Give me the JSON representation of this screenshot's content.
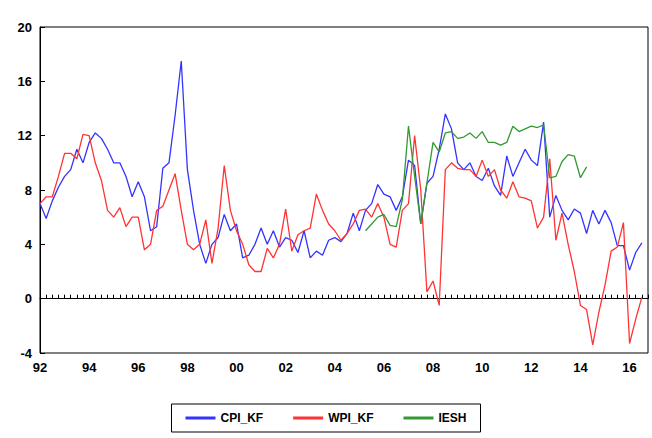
{
  "chart_data": {
    "type": "line",
    "categories": [
      "92",
      null,
      null,
      null,
      null,
      null,
      null,
      null,
      "94",
      null,
      null,
      null,
      null,
      null,
      null,
      null,
      "96",
      null,
      null,
      null,
      null,
      null,
      null,
      null,
      "98",
      null,
      null,
      null,
      null,
      null,
      null,
      null,
      "00",
      null,
      null,
      null,
      null,
      null,
      null,
      null,
      "02",
      null,
      null,
      null,
      null,
      null,
      null,
      null,
      "04",
      null,
      null,
      null,
      null,
      null,
      null,
      null,
      "06",
      null,
      null,
      null,
      null,
      null,
      null,
      null,
      "08",
      null,
      null,
      null,
      null,
      null,
      null,
      null,
      "10",
      null,
      null,
      null,
      null,
      null,
      null,
      null,
      "12",
      null,
      null,
      null,
      null,
      null,
      null,
      null,
      "14",
      null,
      null,
      null,
      null,
      null,
      null,
      null,
      "16",
      null,
      null,
      null
    ],
    "series": [
      {
        "name": "CPI_KF",
        "color": "#3333ff",
        "values": [
          7.0,
          5.9,
          7.2,
          8.2,
          9.0,
          9.5,
          11.0,
          10.0,
          11.5,
          12.2,
          11.8,
          11.0,
          10.0,
          10.0,
          9.0,
          7.5,
          8.6,
          7.5,
          5.0,
          5.3,
          9.6,
          10.0,
          13.5,
          17.5,
          9.5,
          6.5,
          4.0,
          2.6,
          4.0,
          4.5,
          6.2,
          5.0,
          5.5,
          3.0,
          3.2,
          4.0,
          5.2,
          4.0,
          5.0,
          3.8,
          4.5,
          4.3,
          3.4,
          5.0,
          3.0,
          3.5,
          3.2,
          4.3,
          4.5,
          4.2,
          4.8,
          6.3,
          5.0,
          6.5,
          7.0,
          8.4,
          7.7,
          7.5,
          6.5,
          7.5,
          10.2,
          9.8,
          5.5,
          8.5,
          9.0,
          11.0,
          13.6,
          12.5,
          10.0,
          9.5,
          10.0,
          9.0,
          8.7,
          9.6,
          8.3,
          7.6,
          10.5,
          9.0,
          10.0,
          11.0,
          10.2,
          9.8,
          13.0,
          6.0,
          7.6,
          6.5,
          5.8,
          6.6,
          6.3,
          4.8,
          6.5,
          5.5,
          6.5,
          5.6,
          3.9,
          3.9,
          2.1,
          3.4,
          4.1,
          null
        ]
      },
      {
        "name": "WPI_KF",
        "color": "#ff3333",
        "values": [
          7.0,
          7.5,
          7.5,
          9.0,
          10.7,
          10.7,
          10.3,
          12.1,
          12.0,
          10.0,
          8.7,
          6.5,
          6.0,
          6.7,
          5.3,
          6.0,
          6.0,
          3.6,
          4.0,
          6.5,
          6.8,
          8.0,
          9.2,
          6.5,
          4.0,
          3.6,
          4.0,
          5.8,
          2.6,
          5.2,
          9.8,
          6.5,
          5.0,
          4.0,
          2.5,
          2.0,
          2.0,
          3.7,
          3.0,
          4.0,
          6.6,
          3.5,
          4.7,
          5.0,
          5.2,
          7.7,
          6.5,
          5.5,
          5.0,
          4.3,
          4.8,
          5.5,
          6.5,
          6.6,
          6.0,
          7.0,
          6.0,
          4.0,
          3.8,
          6.5,
          7.0,
          12.0,
          8.0,
          0.5,
          1.3,
          -0.5,
          9.5,
          10.0,
          9.6,
          9.5,
          9.5,
          9.0,
          10.2,
          9.0,
          9.5,
          8.0,
          7.4,
          8.6,
          7.5,
          7.4,
          7.2,
          5.2,
          6.0,
          10.3,
          4.3,
          6.3,
          4.0,
          2.0,
          -0.5,
          -0.8,
          -3.4,
          -1.0,
          1.0,
          3.5,
          3.8,
          5.6,
          -3.3,
          -1.5,
          0.1,
          null
        ]
      },
      {
        "name": "IESH",
        "color": "#339933",
        "values": [
          null,
          null,
          null,
          null,
          null,
          null,
          null,
          null,
          null,
          null,
          null,
          null,
          null,
          null,
          null,
          null,
          null,
          null,
          null,
          null,
          null,
          null,
          null,
          null,
          null,
          null,
          null,
          null,
          null,
          null,
          null,
          null,
          null,
          null,
          null,
          null,
          null,
          null,
          null,
          null,
          null,
          null,
          null,
          null,
          null,
          null,
          null,
          null,
          null,
          null,
          null,
          null,
          null,
          5.0,
          5.5,
          6.0,
          6.2,
          5.4,
          5.3,
          7.3,
          12.7,
          9.0,
          5.5,
          8.5,
          11.5,
          10.8,
          12.2,
          12.3,
          11.8,
          11.9,
          12.2,
          11.8,
          12.3,
          11.5,
          11.5,
          11.3,
          11.5,
          12.7,
          12.3,
          12.5,
          12.7,
          12.6,
          12.8,
          8.9,
          9.0,
          10.1,
          10.6,
          10.5,
          8.9,
          9.7,
          null,
          null,
          null,
          null,
          null,
          null,
          null,
          null,
          null,
          null
        ]
      }
    ],
    "ylim": [
      -4,
      20
    ],
    "yticks": [
      -4,
      0,
      4,
      8,
      12,
      16,
      20
    ],
    "grid": false,
    "legend": "bottom"
  }
}
